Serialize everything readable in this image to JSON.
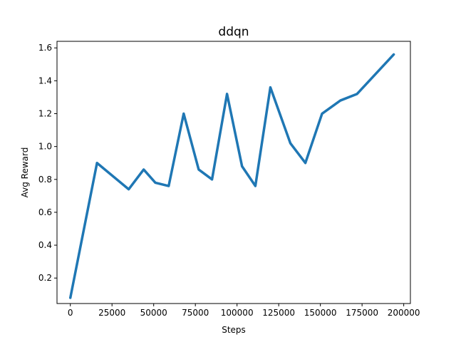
{
  "chart_data": {
    "type": "line",
    "title": "ddqn",
    "xlabel": "Steps",
    "ylabel": "Avg Reward",
    "xlim": [
      -8000,
      204000
    ],
    "ylim": [
      0.045,
      1.64
    ],
    "xticks": [
      0,
      25000,
      50000,
      75000,
      100000,
      125000,
      150000,
      175000,
      200000
    ],
    "yticks": [
      0.2,
      0.4,
      0.6,
      0.8,
      1.0,
      1.2,
      1.4,
      1.6
    ],
    "xtick_labels": [
      "0",
      "25000",
      "50000",
      "75000",
      "100000",
      "125000",
      "150000",
      "175000",
      "200000"
    ],
    "ytick_labels": [
      "0.2",
      "0.4",
      "0.6",
      "0.8",
      "1.0",
      "1.2",
      "1.4",
      "1.6"
    ],
    "grid": false,
    "series": [
      {
        "color": "#1f77b4",
        "x": [
          0,
          16000,
          35000,
          44000,
          51000,
          59000,
          68000,
          77000,
          85000,
          94000,
          103000,
          111000,
          120000,
          132000,
          141000,
          151000,
          162000,
          172000,
          194000
        ],
        "y": [
          0.08,
          0.9,
          0.74,
          0.86,
          0.78,
          0.76,
          1.2,
          0.86,
          0.8,
          1.32,
          0.88,
          0.76,
          1.36,
          1.02,
          0.9,
          1.2,
          1.28,
          1.32,
          1.56
        ]
      }
    ]
  }
}
